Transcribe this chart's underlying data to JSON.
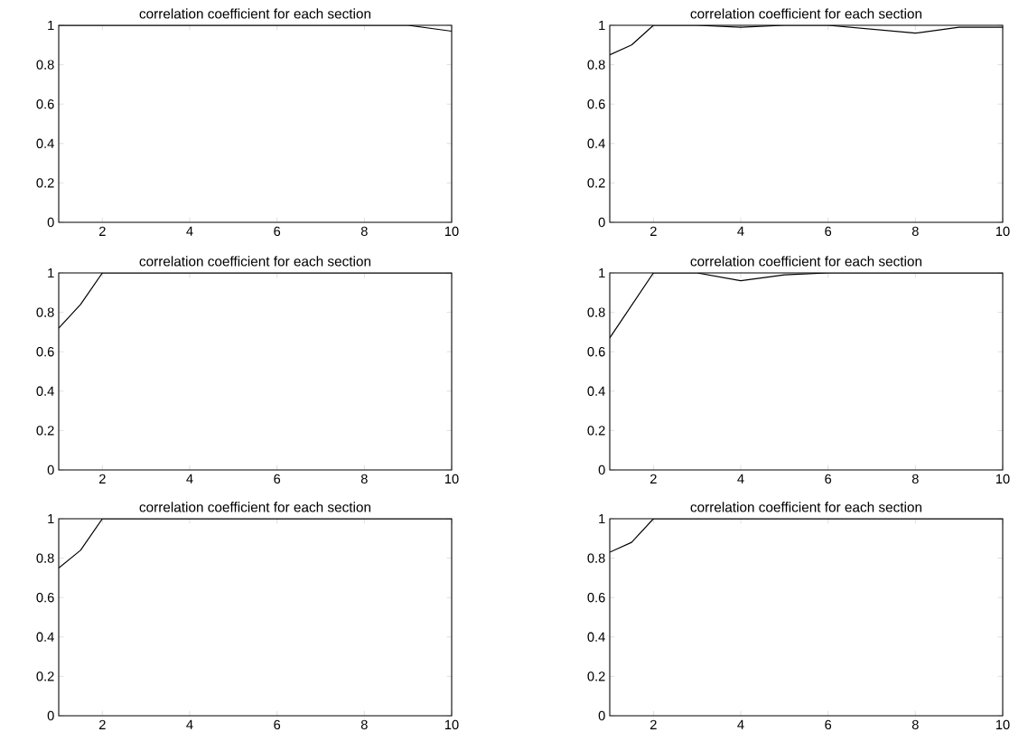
{
  "chart_data": [
    {
      "type": "line",
      "title": "correlation coefficient for each section",
      "x": [
        1,
        2,
        3,
        4,
        5,
        6,
        7,
        8,
        9,
        10
      ],
      "values": [
        1,
        1,
        1,
        1,
        1,
        1,
        1,
        1,
        1,
        0.97
      ],
      "color": "#000000",
      "xlim": [
        1,
        10
      ],
      "ylim": [
        0,
        1
      ],
      "xticks": [
        2,
        4,
        6,
        8,
        10
      ],
      "yticks": [
        0,
        0.2,
        0.4,
        0.6,
        0.8,
        1
      ]
    },
    {
      "type": "line",
      "title": "correlation coefficient for each section",
      "x": [
        1,
        1.5,
        2,
        3,
        4,
        5,
        6,
        7,
        8,
        9,
        10
      ],
      "values": [
        0.85,
        0.9,
        1,
        1,
        0.99,
        1,
        1,
        0.98,
        0.96,
        0.99,
        0.99
      ],
      "color": "#000000",
      "xlim": [
        1,
        10
      ],
      "ylim": [
        0,
        1
      ],
      "xticks": [
        2,
        4,
        6,
        8,
        10
      ],
      "yticks": [
        0,
        0.2,
        0.4,
        0.6,
        0.8,
        1
      ]
    },
    {
      "type": "line",
      "title": "correlation coefficient for each section",
      "x": [
        1,
        1.5,
        2,
        3,
        4,
        5,
        6,
        7,
        8,
        9,
        10
      ],
      "values": [
        0.72,
        0.84,
        1,
        1,
        1,
        1,
        1,
        1,
        1,
        1,
        1
      ],
      "color": "#000000",
      "xlim": [
        1,
        10
      ],
      "ylim": [
        0,
        1
      ],
      "xticks": [
        2,
        4,
        6,
        8,
        10
      ],
      "yticks": [
        0,
        0.2,
        0.4,
        0.6,
        0.8,
        1
      ]
    },
    {
      "type": "line",
      "title": "correlation coefficient for each section",
      "x": [
        1,
        2,
        3,
        4,
        5,
        6,
        7,
        8,
        9,
        10
      ],
      "values": [
        0.67,
        1,
        1,
        0.96,
        0.99,
        1,
        1,
        1,
        1,
        1
      ],
      "color": "#000000",
      "xlim": [
        1,
        10
      ],
      "ylim": [
        0,
        1
      ],
      "xticks": [
        2,
        4,
        6,
        8,
        10
      ],
      "yticks": [
        0,
        0.2,
        0.4,
        0.6,
        0.8,
        1
      ]
    },
    {
      "type": "line",
      "title": "correlation coefficient for each section",
      "x": [
        1,
        1.5,
        2,
        3,
        4,
        5,
        6,
        7,
        8,
        9,
        10
      ],
      "values": [
        0.75,
        0.84,
        1,
        1,
        1,
        1,
        1,
        1,
        1,
        1,
        1
      ],
      "color": "#000000",
      "xlim": [
        1,
        10
      ],
      "ylim": [
        0,
        1
      ],
      "xticks": [
        2,
        4,
        6,
        8,
        10
      ],
      "yticks": [
        0,
        0.2,
        0.4,
        0.6,
        0.8,
        1
      ]
    },
    {
      "type": "line",
      "title": "correlation coefficient for each section",
      "x": [
        1,
        1.5,
        2,
        3,
        4,
        5,
        6,
        7,
        8,
        9,
        10
      ],
      "values": [
        0.83,
        0.88,
        1,
        1,
        1,
        1,
        1,
        1,
        1,
        1,
        1
      ],
      "color": "#000000",
      "xlim": [
        1,
        10
      ],
      "ylim": [
        0,
        1
      ],
      "xticks": [
        2,
        4,
        6,
        8,
        10
      ],
      "yticks": [
        0,
        0.2,
        0.4,
        0.6,
        0.8,
        1
      ]
    }
  ]
}
